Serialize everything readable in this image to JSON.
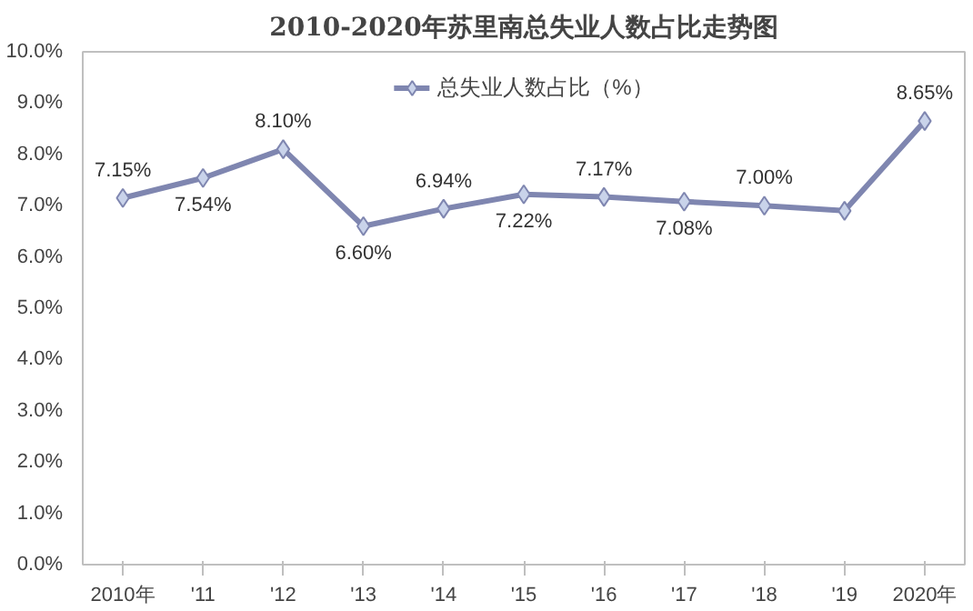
{
  "chart_data": {
    "type": "line",
    "title": "2010-2020年苏里南总失业人数占比走势图",
    "categories": [
      "2010年",
      "'11",
      "'12",
      "'13",
      "'14",
      "'15",
      "'16",
      "'17",
      "'18",
      "'19",
      "2020年"
    ],
    "series": [
      {
        "name": "总失业人数占比（%）",
        "color": "#7f86b0",
        "values": [
          7.15,
          7.54,
          8.1,
          6.6,
          6.94,
          7.22,
          7.17,
          7.08,
          7.0,
          6.9,
          8.65
        ],
        "value_labels": [
          "7.15%",
          "7.54%",
          "8.10%",
          "6.60%",
          "6.94%",
          "7.22%",
          "7.17%",
          "7.08%",
          "7.00%",
          null,
          "8.65%"
        ]
      }
    ],
    "ylim": [
      0,
      10
    ],
    "yticks": [
      {
        "value": 0,
        "label": "0.0%"
      },
      {
        "value": 1,
        "label": "1.0%"
      },
      {
        "value": 2,
        "label": "2.0%"
      },
      {
        "value": 3,
        "label": "3.0%"
      },
      {
        "value": 4,
        "label": "4.0%"
      },
      {
        "value": 5,
        "label": "5.0%"
      },
      {
        "value": 6,
        "label": "6.0%"
      },
      {
        "value": 7,
        "label": "7.0%"
      },
      {
        "value": 8,
        "label": "8.0%"
      },
      {
        "value": 9,
        "label": "9.0%"
      },
      {
        "value": 10,
        "label": "10.0%"
      }
    ],
    "marker": "diamond",
    "legend": "top",
    "grid": false
  }
}
